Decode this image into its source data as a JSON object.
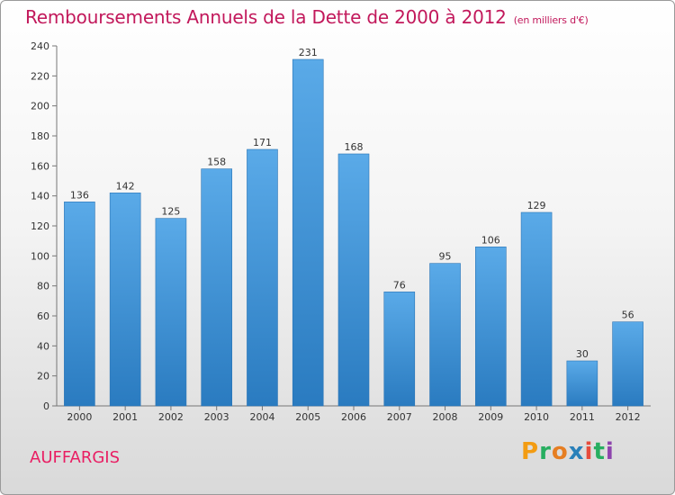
{
  "header": {
    "title": "Remboursements Annuels de la Dette de 2000 à 2012",
    "unit": "(en milliers d'€)"
  },
  "footer": {
    "place": "AUFFARGIS",
    "logo_letters": [
      "P",
      "r",
      "o",
      "x",
      "i",
      "t",
      "i"
    ],
    "logo_colors": [
      "#f39c12",
      "#27ae60",
      "#e67e22",
      "#2980b9",
      "#e74c3c",
      "#27ae60",
      "#8e44ad"
    ]
  },
  "chart_data": {
    "type": "bar",
    "title": "Remboursements Annuels de la Dette de 2000 à 2012",
    "subtitle": "(en milliers d'€)",
    "categories": [
      "2000",
      "2001",
      "2002",
      "2003",
      "2004",
      "2005",
      "2006",
      "2007",
      "2008",
      "2009",
      "2010",
      "2011",
      "2012"
    ],
    "values": [
      136,
      142,
      125,
      158,
      171,
      231,
      168,
      76,
      95,
      106,
      129,
      30,
      56
    ],
    "ylim": [
      0,
      240
    ],
    "yticks": [
      0,
      20,
      40,
      60,
      80,
      100,
      120,
      140,
      160,
      180,
      200,
      220,
      240
    ],
    "grid": false,
    "bar_color": "#3a90d4"
  }
}
